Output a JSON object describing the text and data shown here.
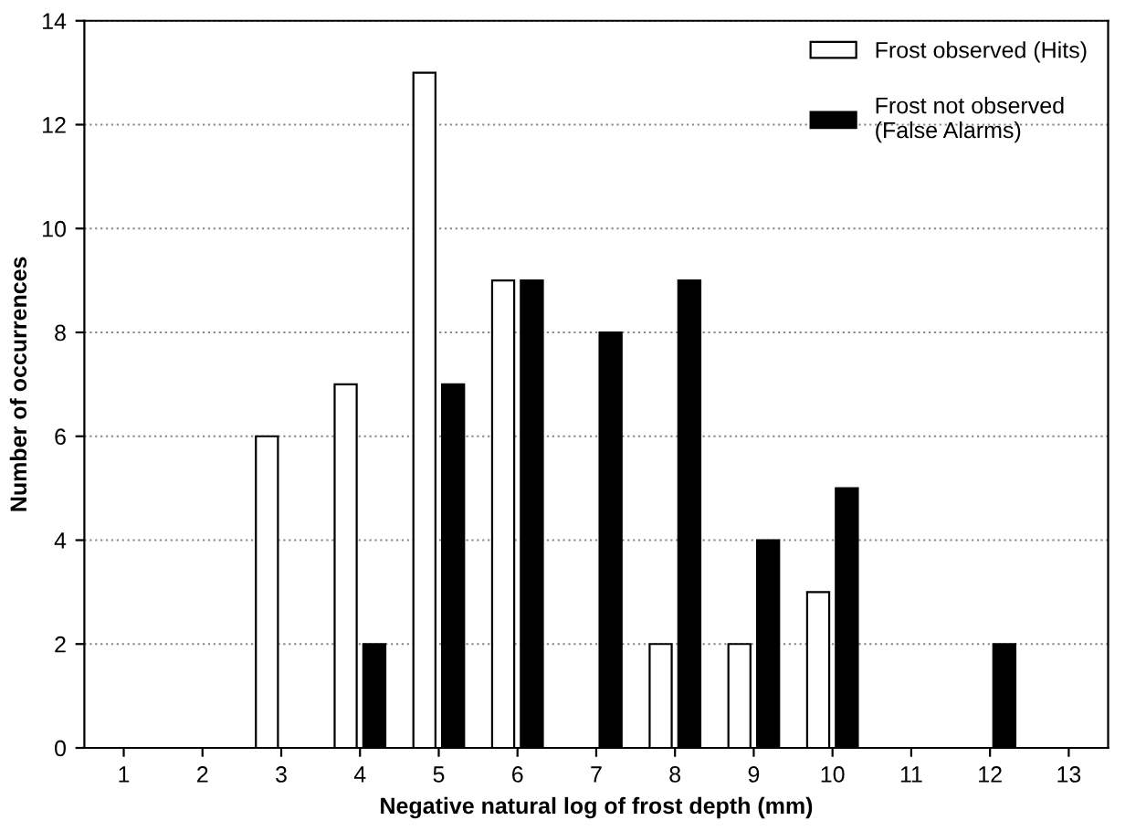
{
  "chart_data": {
    "type": "bar",
    "xlabel": "Negative natural log of frost depth (mm)",
    "ylabel": "Number of occurrences",
    "categories": [
      "1",
      "2",
      "3",
      "4",
      "5",
      "6",
      "7",
      "8",
      "9",
      "10",
      "11",
      "12",
      "13"
    ],
    "series": [
      {
        "name": "Frost observed (Hits)",
        "color": "#ffffff",
        "values": [
          0,
          0,
          6,
          7,
          13,
          9,
          0,
          2,
          2,
          3,
          0,
          0,
          0
        ]
      },
      {
        "name": "Frost not observed\n(False Alarms)",
        "color": "#000000",
        "values": [
          0,
          0,
          0,
          2,
          7,
          9,
          8,
          9,
          4,
          5,
          0,
          2,
          0
        ]
      }
    ],
    "ylim": [
      0,
      14
    ],
    "yticks": [
      0,
      2,
      4,
      6,
      8,
      10,
      12,
      14
    ],
    "grid": "y",
    "legend": "top right"
  }
}
